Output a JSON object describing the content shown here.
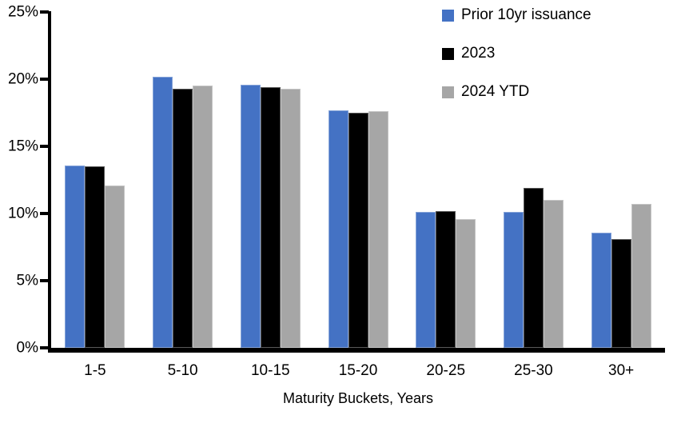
{
  "chart_data": {
    "type": "bar",
    "title": "",
    "xlabel": "Maturity Buckets, Years",
    "ylabel": "",
    "categories": [
      "1-5",
      "5-10",
      "10-15",
      "15-20",
      "20-25",
      "25-30",
      "30+"
    ],
    "series": [
      {
        "name": "Prior 10yr issuance",
        "color": "#4472C4",
        "values": [
          13.6,
          20.2,
          19.6,
          17.7,
          10.1,
          10.1,
          8.6
        ]
      },
      {
        "name": "2023",
        "color": "#000000",
        "values": [
          13.5,
          19.3,
          19.4,
          17.5,
          10.2,
          11.9,
          8.1
        ]
      },
      {
        "name": "2024 YTD",
        "color": "#A6A6A6",
        "values": [
          12.1,
          19.5,
          19.3,
          17.6,
          9.6,
          11.0,
          10.7
        ]
      }
    ],
    "ylim": [
      0,
      25
    ],
    "yticks": [
      0,
      5,
      10,
      15,
      20,
      25
    ],
    "ytick_suffix": "%",
    "grid": false,
    "legend_position": "top-right",
    "axis_color": "#000000",
    "background_color": "#FFFFFF"
  }
}
